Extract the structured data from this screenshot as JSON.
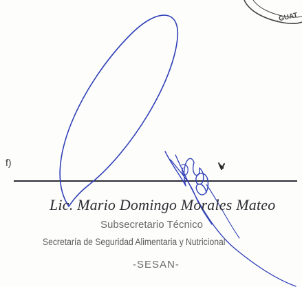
{
  "document": {
    "f_label": "f)",
    "signatory_name": "Lic. Mario Domingo Morales Mateo",
    "signatory_title": "Subsecretario Técnico",
    "institution": "Secretaría de Seguridad Alimentaria y Nutricional",
    "acronym": "-SESAN-",
    "seal_fragment": "GUAT"
  },
  "colors": {
    "ink_blue": "#2f3fb8",
    "seal_ink": "#444444",
    "text_gray": "#6a6a6a"
  }
}
